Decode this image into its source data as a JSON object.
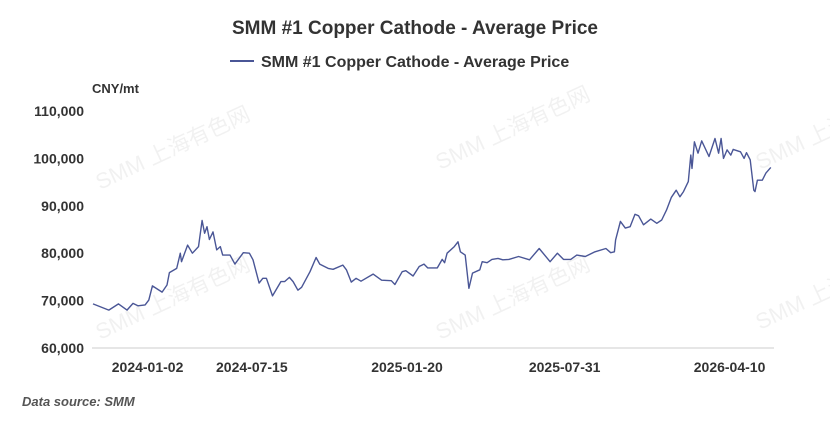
{
  "chart_data": {
    "type": "line",
    "title": "SMM #1 Copper Cathode - Average Price",
    "legend": [
      "SMM #1 Copper Cathode - Average Price"
    ],
    "legend_position": "top-center",
    "ylabel": "CNY/mt",
    "xlabel": "",
    "ylim": [
      60000,
      110000
    ],
    "yticks": [
      60000,
      70000,
      80000,
      90000,
      100000,
      110000
    ],
    "ytick_labels": [
      "60,000",
      "70,000",
      "80,000",
      "90,000",
      "100,000",
      "110,000"
    ],
    "x_unit": "trading-day index (approximate)",
    "xlim": [
      0,
      560
    ],
    "xtick_labels": [
      {
        "label": "2024-01-02",
        "x": 45
      },
      {
        "label": "2024-07-15",
        "x": 131
      },
      {
        "label": "2025-01-20",
        "x": 259
      },
      {
        "label": "2025-07-31",
        "x": 389
      },
      {
        "label": "2026-04-10",
        "x": 525
      }
    ],
    "grid": false,
    "series": [
      {
        "name": "SMM #1 Copper Cathode - Average Price",
        "color": "#4a5696",
        "points": [
          [
            0,
            69300
          ],
          [
            13,
            68000
          ],
          [
            21,
            69300
          ],
          [
            28,
            68000
          ],
          [
            33,
            69400
          ],
          [
            37,
            68900
          ],
          [
            43,
            69100
          ],
          [
            46,
            70100
          ],
          [
            49,
            73100
          ],
          [
            57,
            71800
          ],
          [
            61,
            73300
          ],
          [
            63,
            75900
          ],
          [
            69,
            76800
          ],
          [
            72,
            80000
          ],
          [
            73,
            78200
          ],
          [
            78,
            81700
          ],
          [
            82,
            80000
          ],
          [
            87,
            81400
          ],
          [
            90,
            86900
          ],
          [
            92,
            84200
          ],
          [
            94,
            85600
          ],
          [
            96,
            82900
          ],
          [
            99,
            84500
          ],
          [
            102,
            80700
          ],
          [
            105,
            81400
          ],
          [
            107,
            79600
          ],
          [
            113,
            79600
          ],
          [
            117,
            77700
          ],
          [
            124,
            80100
          ],
          [
            129,
            80000
          ],
          [
            132,
            78600
          ],
          [
            137,
            73700
          ],
          [
            140,
            74700
          ],
          [
            143,
            74700
          ],
          [
            148,
            71000
          ],
          [
            155,
            74000
          ],
          [
            158,
            74000
          ],
          [
            162,
            74900
          ],
          [
            165,
            74000
          ],
          [
            169,
            72200
          ],
          [
            172,
            72800
          ],
          [
            179,
            76100
          ],
          [
            184,
            79100
          ],
          [
            187,
            77700
          ],
          [
            194,
            76800
          ],
          [
            198,
            76600
          ],
          [
            206,
            77500
          ],
          [
            209,
            76500
          ],
          [
            213,
            73900
          ],
          [
            217,
            74700
          ],
          [
            221,
            74100
          ],
          [
            231,
            75600
          ],
          [
            238,
            74300
          ],
          [
            246,
            74200
          ],
          [
            249,
            73400
          ],
          [
            255,
            76100
          ],
          [
            258,
            76300
          ],
          [
            264,
            75200
          ],
          [
            269,
            77200
          ],
          [
            273,
            77700
          ],
          [
            276,
            76900
          ],
          [
            284,
            76900
          ],
          [
            288,
            78700
          ],
          [
            290,
            78000
          ],
          [
            292,
            80000
          ],
          [
            298,
            81400
          ],
          [
            301,
            82400
          ],
          [
            303,
            80300
          ],
          [
            307,
            79600
          ],
          [
            310,
            72600
          ],
          [
            313,
            75800
          ],
          [
            319,
            76500
          ],
          [
            321,
            78200
          ],
          [
            325,
            78000
          ],
          [
            329,
            78700
          ],
          [
            334,
            78900
          ],
          [
            338,
            78600
          ],
          [
            343,
            78700
          ],
          [
            351,
            79300
          ],
          [
            360,
            78600
          ],
          [
            368,
            81000
          ],
          [
            377,
            78200
          ],
          [
            383,
            80000
          ],
          [
            388,
            78700
          ],
          [
            394,
            78700
          ],
          [
            399,
            79600
          ],
          [
            406,
            79300
          ],
          [
            414,
            80300
          ],
          [
            423,
            81000
          ],
          [
            427,
            80100
          ],
          [
            430,
            80300
          ],
          [
            431,
            82800
          ],
          [
            435,
            86700
          ],
          [
            439,
            85300
          ],
          [
            443,
            85600
          ],
          [
            447,
            88200
          ],
          [
            450,
            87900
          ],
          [
            454,
            86000
          ],
          [
            460,
            87200
          ],
          [
            465,
            86300
          ],
          [
            469,
            87000
          ],
          [
            473,
            89100
          ],
          [
            477,
            91800
          ],
          [
            481,
            93300
          ],
          [
            484,
            91900
          ],
          [
            487,
            93000
          ],
          [
            491,
            95100
          ],
          [
            493,
            100700
          ],
          [
            494,
            97900
          ],
          [
            496,
            103500
          ],
          [
            499,
            101100
          ],
          [
            502,
            103700
          ],
          [
            508,
            100400
          ],
          [
            513,
            104200
          ],
          [
            516,
            101100
          ],
          [
            518,
            104200
          ],
          [
            520,
            100000
          ],
          [
            523,
            101800
          ],
          [
            526,
            100700
          ],
          [
            528,
            101900
          ],
          [
            534,
            101400
          ],
          [
            537,
            100000
          ],
          [
            539,
            101200
          ],
          [
            542,
            99700
          ],
          [
            545,
            93300
          ],
          [
            546,
            93000
          ],
          [
            548,
            95400
          ],
          [
            552,
            95400
          ],
          [
            555,
            96900
          ],
          [
            559,
            98100
          ]
        ]
      }
    ]
  },
  "watermark": "SMM 上海有色网",
  "source": "Data source:  SMM"
}
